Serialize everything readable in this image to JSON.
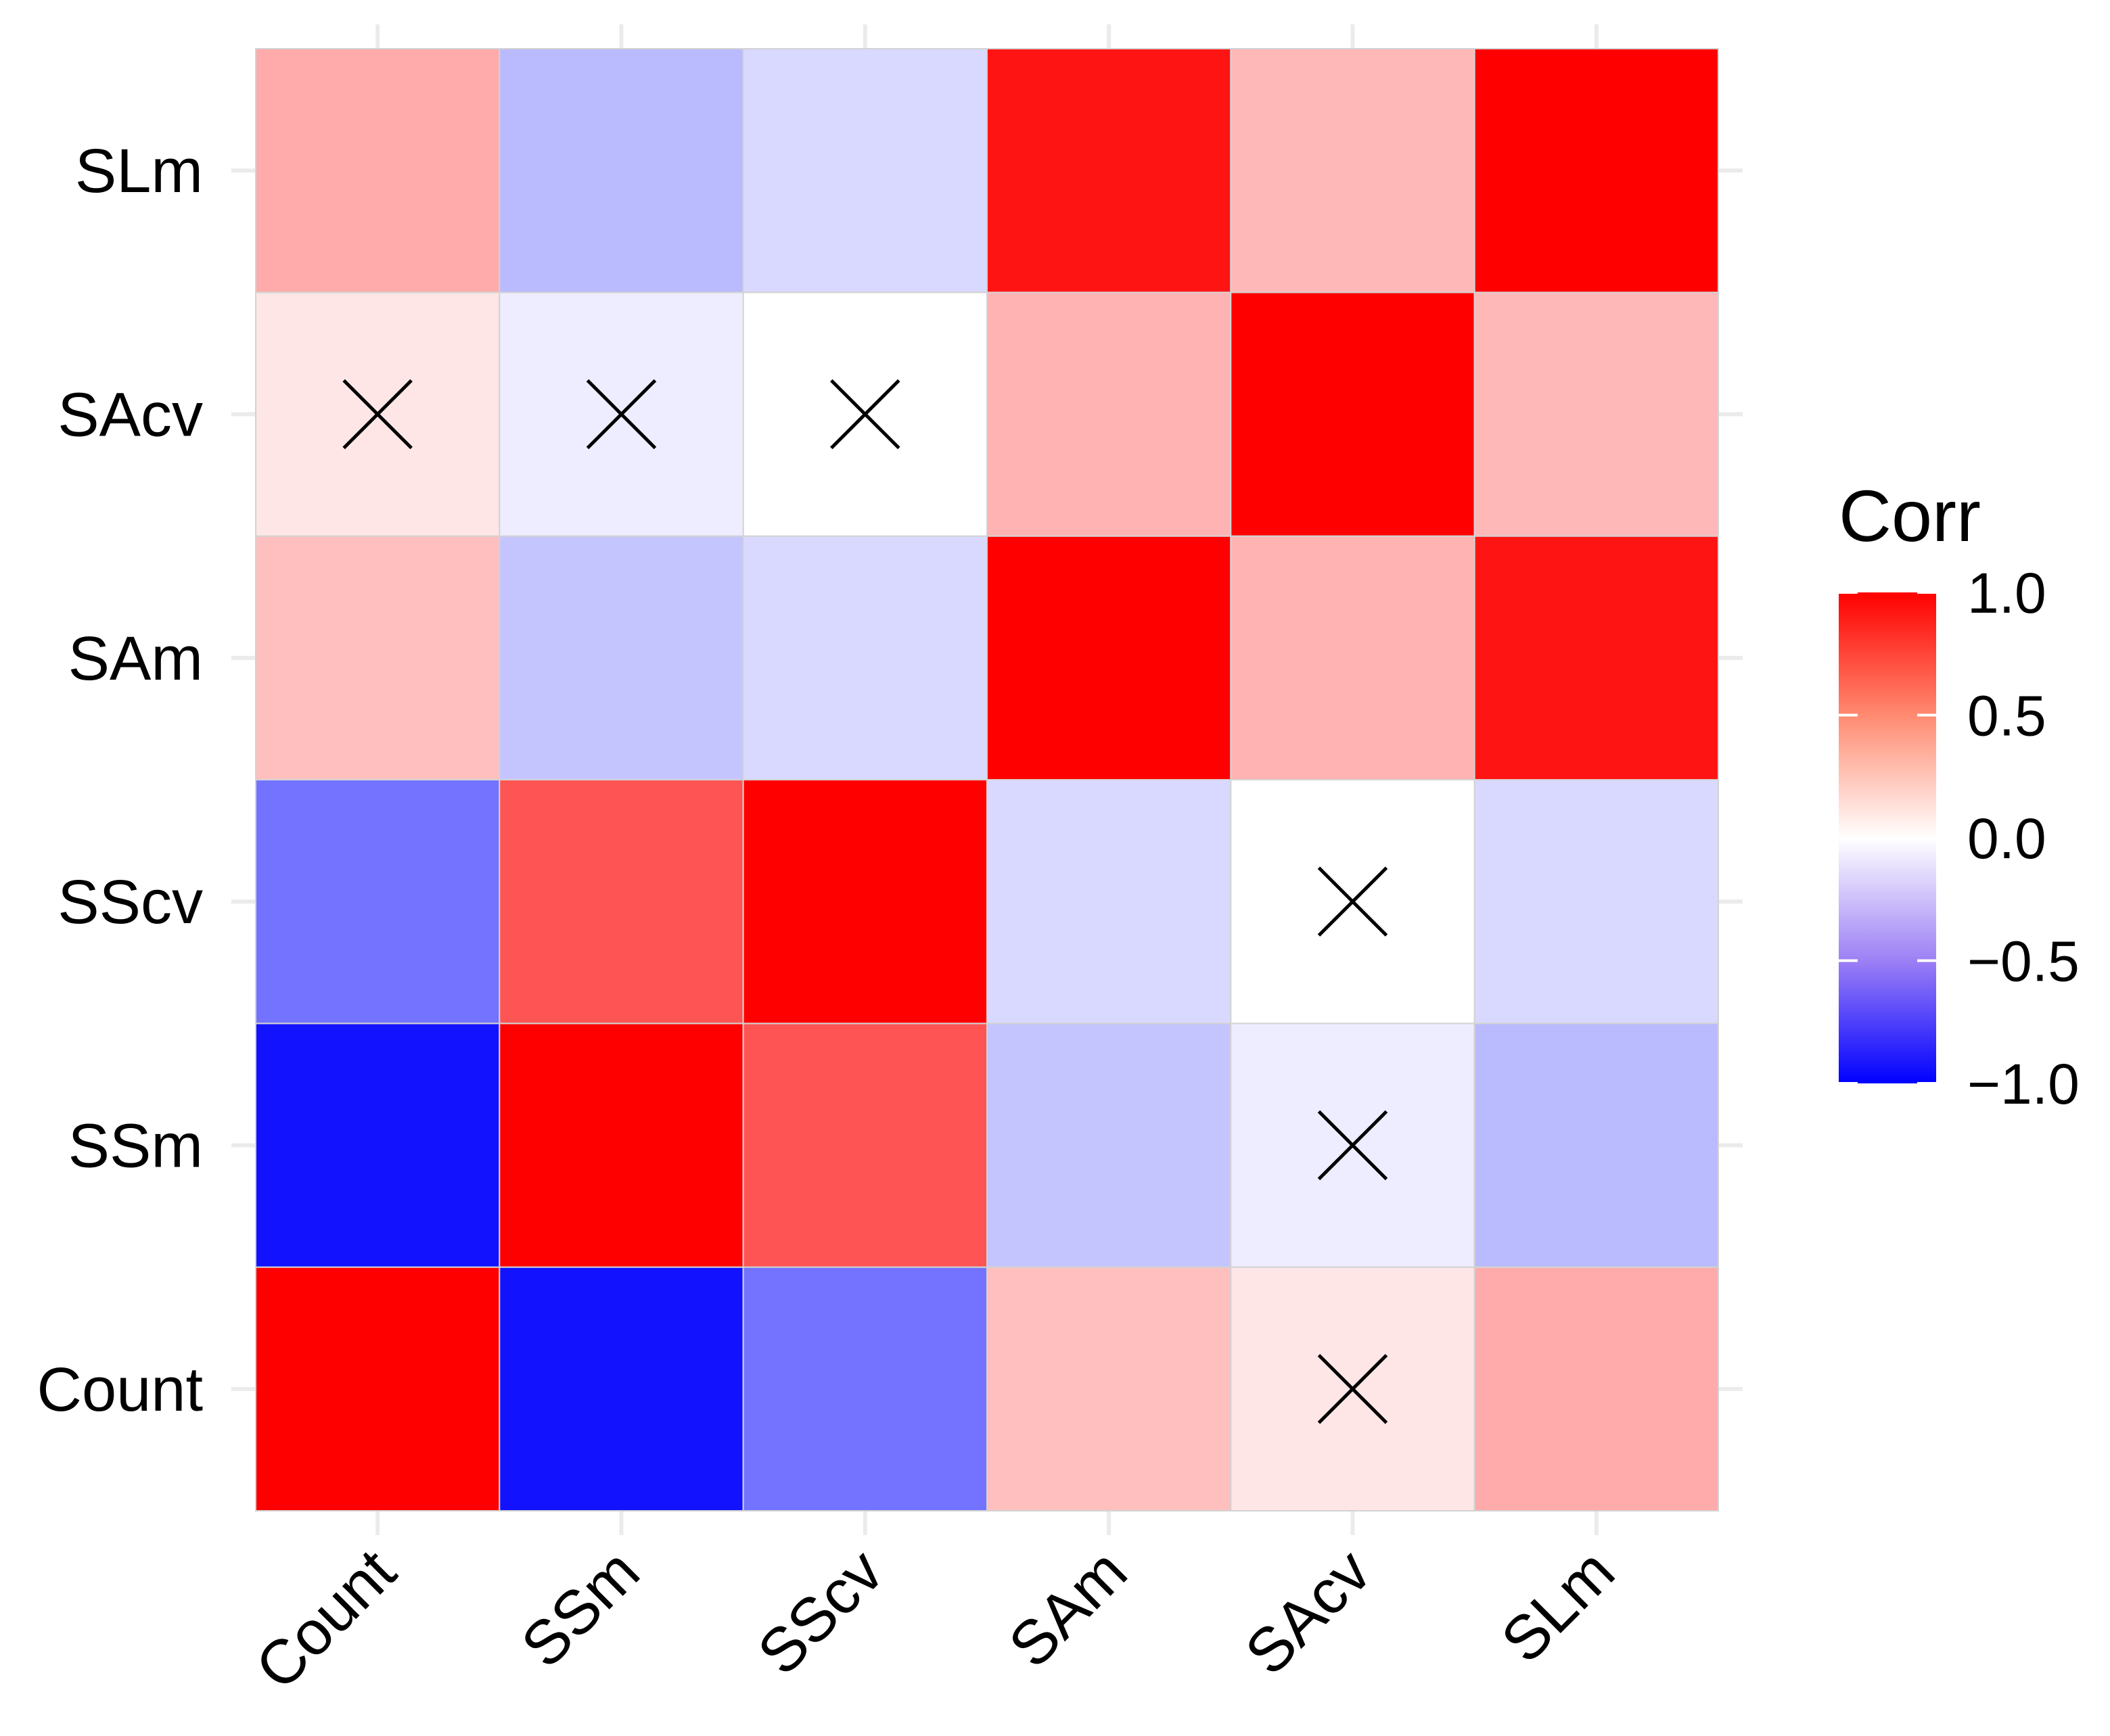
{
  "chart_data": {
    "type": "heatmap",
    "title": "",
    "xlabel": "",
    "ylabel": "",
    "x_categories": [
      "Count",
      "SSm",
      "SScv",
      "SAm",
      "SAcv",
      "SLm"
    ],
    "y_categories": [
      "Count",
      "SSm",
      "SScv",
      "SAm",
      "SAcv",
      "SLm"
    ],
    "grid": true,
    "legend": {
      "title": "Corr",
      "position": "right",
      "ticks": [
        {
          "value": 1.0,
          "label": "1.0"
        },
        {
          "value": 0.5,
          "label": "0.5"
        },
        {
          "value": 0.0,
          "label": "0.0"
        },
        {
          "value": -0.5,
          "label": "−0.5"
        },
        {
          "value": -1.0,
          "label": "−1.0"
        }
      ],
      "range": [
        -1,
        1
      ]
    },
    "colors": {
      "high": "#FF0000",
      "mid": "#FFFFFF",
      "low": "#0000FF"
    },
    "matrix": [
      [
        1.0,
        -0.93,
        -0.55,
        0.25,
        0.1,
        0.33
      ],
      [
        -0.93,
        1.0,
        0.67,
        -0.23,
        -0.07,
        -0.27
      ],
      [
        -0.55,
        0.67,
        1.0,
        -0.15,
        0.0,
        -0.15
      ],
      [
        0.25,
        -0.23,
        -0.15,
        1.0,
        0.3,
        0.92
      ],
      [
        0.1,
        -0.07,
        0.0,
        0.3,
        1.0,
        0.28
      ],
      [
        0.33,
        -0.27,
        -0.15,
        0.92,
        0.28,
        1.0
      ]
    ],
    "insignificant_marker": "X",
    "insignificant": [
      [
        0,
        4
      ],
      [
        1,
        4
      ],
      [
        2,
        4
      ],
      [
        4,
        0
      ],
      [
        4,
        1
      ],
      [
        4,
        2
      ]
    ]
  }
}
